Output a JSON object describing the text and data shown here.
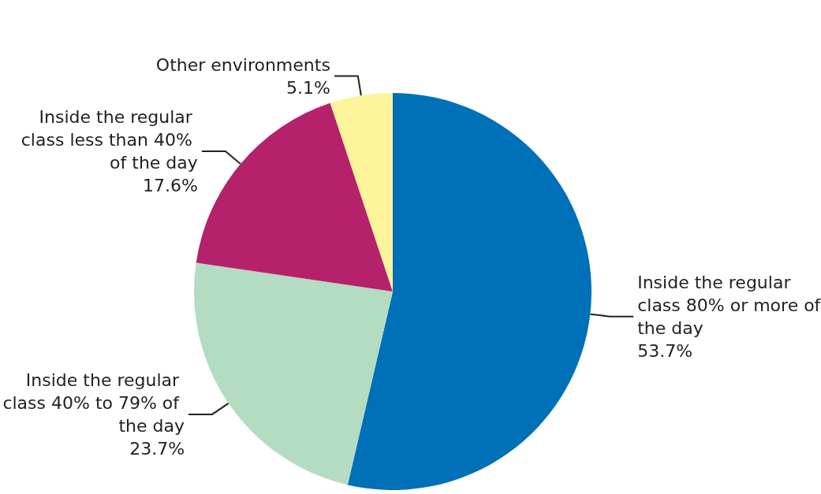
{
  "chart_data": {
    "type": "pie",
    "categories": [
      "Inside the regular class 80% or more of the day",
      "Inside the regular class 40% to 79% of the day",
      "Inside the regular class less than 40% of the day",
      "Other environments"
    ],
    "values": [
      53.7,
      23.7,
      17.6,
      5.1
    ],
    "colors": [
      "#0070b8",
      "#b3dcc3",
      "#b5216b",
      "#fdf39a"
    ],
    "value_labels": [
      "53.7%",
      "23.7%",
      "17.6%",
      "5.1%"
    ]
  }
}
